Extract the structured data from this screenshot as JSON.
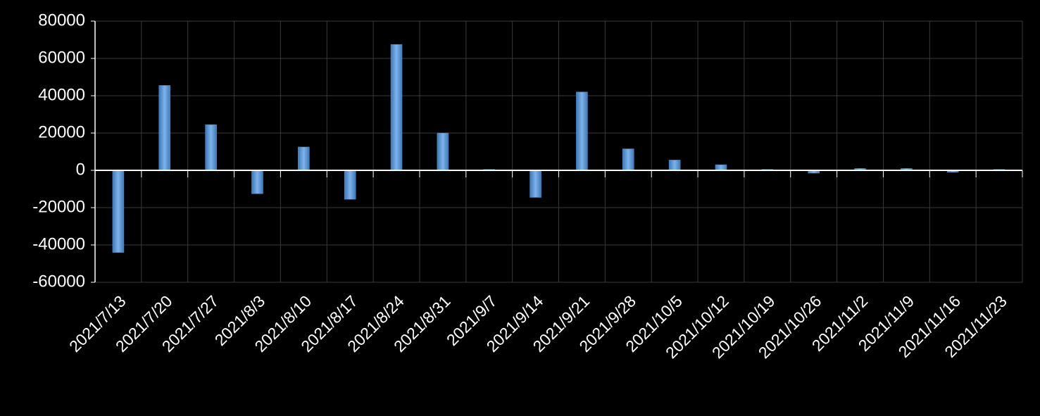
{
  "chart_data": {
    "type": "bar",
    "categories": [
      "2021/7/13",
      "2021/7/20",
      "2021/7/27",
      "2021/8/3",
      "2021/8/10",
      "2021/8/17",
      "2021/8/24",
      "2021/8/31",
      "2021/9/7",
      "2021/9/14",
      "2021/9/21",
      "2021/9/28",
      "2021/10/5",
      "2021/10/12",
      "2021/10/19",
      "2021/10/26",
      "2021/11/2",
      "2021/11/9",
      "2021/11/16",
      "2021/11/23"
    ],
    "values": [
      -44000,
      45500,
      24500,
      -12500,
      12500,
      -15500,
      67500,
      20000,
      500,
      -14500,
      42000,
      11500,
      5500,
      3000,
      500,
      -1500,
      1000,
      1000,
      -1000,
      500
    ],
    "color": "#5b9bd5",
    "ylim": [
      -60000,
      80000
    ],
    "yticks": [
      -60000,
      -40000,
      -20000,
      0,
      20000,
      40000,
      60000,
      80000
    ],
    "grid": true
  }
}
